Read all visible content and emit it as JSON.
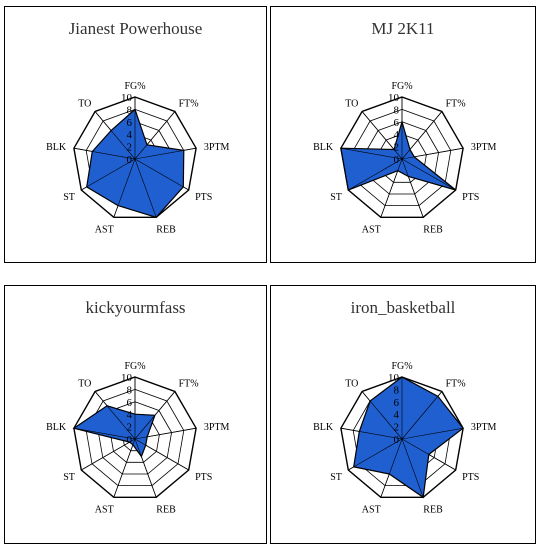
{
  "chart_data": [
    {
      "type": "radar",
      "title": "Jianest Powerhouse",
      "axes": [
        "FG%",
        "FT%",
        "3PTM",
        "PTS",
        "REB",
        "AST",
        "ST",
        "BLK",
        "TO"
      ],
      "rlim": [
        0,
        10
      ],
      "ticks": [
        "0",
        "2",
        "4",
        "6",
        "8",
        "10"
      ],
      "values": [
        8,
        3,
        8,
        9,
        10,
        8,
        9,
        7,
        6
      ],
      "fill_color": "#1f5fd0"
    },
    {
      "type": "radar",
      "title": "MJ 2K11",
      "axes": [
        "FG%",
        "FT%",
        "3PTM",
        "PTS",
        "REB",
        "AST",
        "ST",
        "BLK",
        "TO"
      ],
      "rlim": [
        0,
        10
      ],
      "ticks": [
        "0",
        "2",
        "4",
        "6",
        "8",
        "10"
      ],
      "values": [
        6,
        2,
        2,
        10,
        3,
        2,
        10,
        10,
        2
      ],
      "fill_color": "#1f5fd0"
    },
    {
      "type": "radar",
      "title": "kickyourmfass",
      "axes": [
        "FG%",
        "FT%",
        "3PTM",
        "PTS",
        "REB",
        "AST",
        "ST",
        "BLK",
        "TO"
      ],
      "rlim": [
        0,
        10
      ],
      "ticks": [
        "0",
        "2",
        "4",
        "6",
        "8",
        "10"
      ],
      "values": [
        4,
        5,
        2,
        2,
        3,
        1,
        1,
        10,
        7
      ],
      "fill_color": "#1f5fd0"
    },
    {
      "type": "radar",
      "title": "iron_basketball",
      "axes": [
        "FG%",
        "FT%",
        "3PTM",
        "PTS",
        "REB",
        "AST",
        "ST",
        "BLK",
        "TO"
      ],
      "rlim": [
        0,
        10
      ],
      "ticks": [
        "0",
        "2",
        "4",
        "6",
        "8",
        "10"
      ],
      "values": [
        10,
        9,
        10,
        5,
        10,
        6,
        9,
        7,
        8
      ],
      "fill_color": "#1f5fd0"
    }
  ]
}
